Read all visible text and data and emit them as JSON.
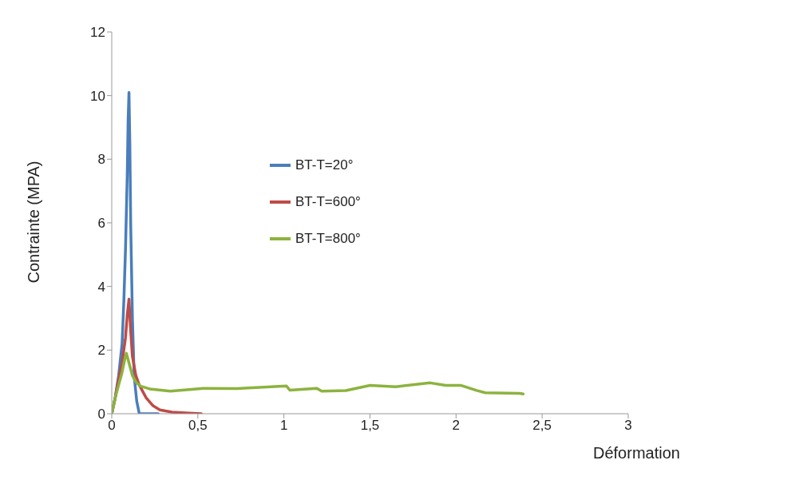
{
  "chart_data": {
    "type": "line",
    "xlabel": "Déformation",
    "ylabel": "Contrainte (MPA)",
    "xlim": [
      0,
      3
    ],
    "xticks": [
      0,
      {
        "value": 0.5,
        "label": "0,5"
      },
      1,
      {
        "value": 1.5,
        "label": "1,5"
      },
      2,
      {
        "value": 2.5,
        "label": "2,5"
      },
      3
    ],
    "ylim": [
      0,
      12
    ],
    "yticks": [
      0,
      2,
      4,
      6,
      8,
      10,
      12
    ],
    "grid": false,
    "legend": "top left",
    "marker": "none",
    "line_style": "solid",
    "series": [
      {
        "name": "BT-T=20°",
        "color": "#4a7ebb",
        "x": [
          0,
          0.02,
          0.04,
          0.06,
          0.07,
          0.08,
          0.09,
          0.095,
          0.1,
          0.105,
          0.11,
          0.12,
          0.13,
          0.145,
          0.16,
          0.2,
          0.27
        ],
        "values": [
          0,
          0.5,
          1.2,
          2.2,
          3.5,
          5.2,
          7.5,
          9.2,
          10.1,
          8.5,
          6,
          3,
          1.2,
          0.4,
          0,
          0,
          0
        ]
      },
      {
        "name": "BT-T=600°",
        "color": "#be4b48",
        "x": [
          0,
          0.02,
          0.04,
          0.06,
          0.08,
          0.09,
          0.1,
          0.11,
          0.12,
          0.14,
          0.16,
          0.2,
          0.24,
          0.28,
          0.35,
          0.45,
          0.52
        ],
        "values": [
          0,
          0.5,
          1.1,
          1.6,
          2.4,
          3.1,
          3.6,
          2.6,
          1.8,
          1.2,
          0.9,
          0.5,
          0.25,
          0.12,
          0.05,
          0.02,
          0
        ]
      },
      {
        "name": "BT-T=800°",
        "color": "#8cb33e",
        "x": [
          0,
          0.02,
          0.04,
          0.06,
          0.075,
          0.085,
          0.1,
          0.12,
          0.14,
          0.166,
          0.22,
          0.34,
          0.533,
          0.726,
          1.015,
          1.035,
          1.19,
          1.22,
          1.36,
          1.5,
          1.65,
          1.85,
          1.94,
          2.03,
          2.12,
          2.17,
          2.37,
          2.39
        ],
        "values": [
          0,
          0.5,
          0.9,
          1.3,
          1.7,
          1.9,
          1.6,
          1.2,
          1.0,
          0.87,
          0.78,
          0.71,
          0.8,
          0.79,
          0.87,
          0.74,
          0.8,
          0.71,
          0.73,
          0.89,
          0.85,
          0.97,
          0.89,
          0.89,
          0.73,
          0.66,
          0.64,
          0.62
        ]
      }
    ]
  }
}
